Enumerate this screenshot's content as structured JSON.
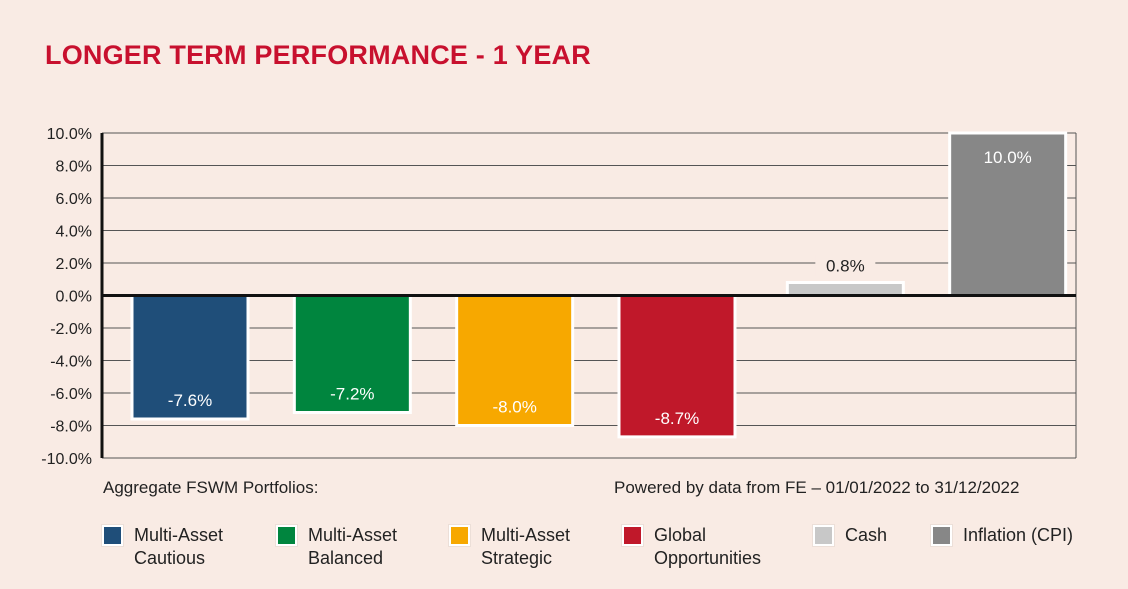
{
  "chart_data": {
    "type": "bar",
    "title": "LONGER TERM PERFORMANCE - 1 YEAR",
    "categories": [
      "Multi-Asset Cautious",
      "Multi-Asset Balanced",
      "Multi-Asset Strategic",
      "Global Opportunities",
      "Cash",
      "Inflation (CPI)"
    ],
    "legend_labels": [
      "Multi-Asset\nCautious",
      "Multi-Asset\nBalanced",
      "Multi-Asset\nStrategic",
      "Global\nOpportunities",
      "Cash",
      "Inflation (CPI)"
    ],
    "values": [
      -7.6,
      -7.2,
      -8.0,
      -8.7,
      0.8,
      10.0
    ],
    "data_labels": [
      "-7.6%",
      "-7.2%",
      "-8.0%",
      "-8.7%",
      "0.8%",
      "10.0%"
    ],
    "colors": [
      "#1f4e79",
      "#00853e",
      "#f7a800",
      "#c0182a",
      "#c8c8c8",
      "#878787"
    ],
    "ylim": [
      -10,
      10
    ],
    "yticks": [
      10,
      8,
      6,
      4,
      2,
      0,
      -2,
      -4,
      -6,
      -8,
      -10
    ],
    "ytick_labels": [
      "10.0%",
      "8.0%",
      "6.0%",
      "4.0%",
      "2.0%",
      "0.0%",
      "-2.0%",
      "-4.0%",
      "-6.0%",
      "-8.0%",
      "-10.0%"
    ],
    "xlabel": "",
    "ylabel": "",
    "grid": true,
    "legend_position": "bottom",
    "footnote_left": "Aggregate FSWM Portfolios:",
    "footnote_right": "Powered by data from FE – 01/01/2022 to 31/12/2022"
  },
  "colors": {
    "background": "#f9ebe4",
    "title": "#c8102e"
  }
}
